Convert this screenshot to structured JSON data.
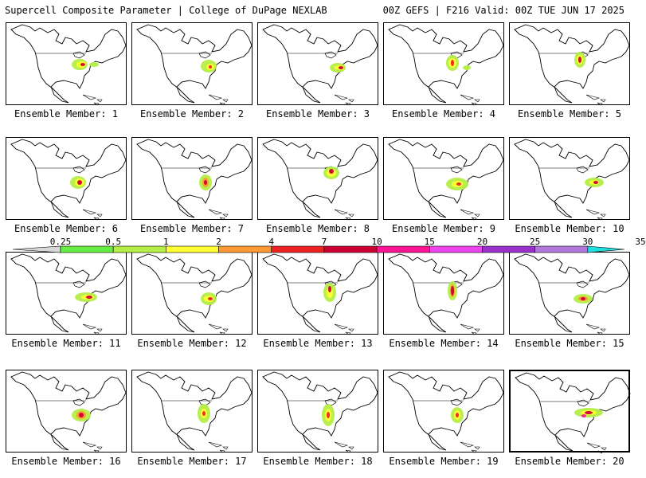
{
  "header": {
    "title": "Supercell Composite Parameter | College of DuPage NEXLAB",
    "run_info": "00Z GEFS | F216 Valid: 00Z TUE JUN 17 2025"
  },
  "colorbar": {
    "ticks": [
      "0.25",
      "0.5",
      "1",
      "2",
      "4",
      "7",
      "10",
      "15",
      "20",
      "25",
      "30",
      "35"
    ],
    "colors": [
      "#d8d8d8",
      "#66ee44",
      "#b4ee44",
      "#ffff33",
      "#ff9933",
      "#ee2222",
      "#cc0033",
      "#ff1493",
      "#ee44ee",
      "#9932cc",
      "#b377d9",
      "#22dddd"
    ]
  },
  "panels": [
    {
      "label": "Ensemble Member: 1"
    },
    {
      "label": "Ensemble Member: 2"
    },
    {
      "label": "Ensemble Member: 3"
    },
    {
      "label": "Ensemble Member: 4"
    },
    {
      "label": "Ensemble Member: 5"
    },
    {
      "label": "Ensemble Member: 6"
    },
    {
      "label": "Ensemble Member: 7"
    },
    {
      "label": "Ensemble Member: 8"
    },
    {
      "label": "Ensemble Member: 9"
    },
    {
      "label": "Ensemble Member: 10"
    },
    {
      "label": "Ensemble Member: 11"
    },
    {
      "label": "Ensemble Member: 12"
    },
    {
      "label": "Ensemble Member: 13"
    },
    {
      "label": "Ensemble Member: 14"
    },
    {
      "label": "Ensemble Member: 15"
    },
    {
      "label": "Ensemble Member: 16"
    },
    {
      "label": "Ensemble Member: 17"
    },
    {
      "label": "Ensemble Member: 18"
    },
    {
      "label": "Ensemble Member: 19"
    },
    {
      "label": "Ensemble Member: 20",
      "selected": true
    }
  ]
}
